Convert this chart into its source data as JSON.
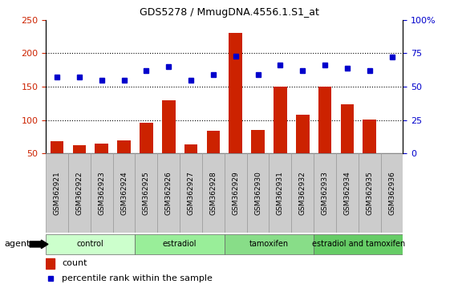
{
  "title": "GDS5278 / MmugDNA.4556.1.S1_at",
  "samples": [
    "GSM362921",
    "GSM362922",
    "GSM362923",
    "GSM362924",
    "GSM362925",
    "GSM362926",
    "GSM362927",
    "GSM362928",
    "GSM362929",
    "GSM362930",
    "GSM362931",
    "GSM362932",
    "GSM362933",
    "GSM362934",
    "GSM362935",
    "GSM362936"
  ],
  "count_values": [
    68,
    62,
    65,
    70,
    96,
    130,
    63,
    84,
    230,
    85,
    150,
    108,
    150,
    124,
    101,
    50
  ],
  "percentile_values": [
    57,
    57,
    55,
    55,
    62,
    65,
    55,
    59,
    73,
    59,
    66,
    62,
    66,
    64,
    62,
    72
  ],
  "bar_color": "#cc2200",
  "dot_color": "#0000cc",
  "groups": [
    {
      "label": "control",
      "start": 0,
      "end": 4,
      "color": "#ccffcc"
    },
    {
      "label": "estradiol",
      "start": 4,
      "end": 8,
      "color": "#99ee99"
    },
    {
      "label": "tamoxifen",
      "start": 8,
      "end": 12,
      "color": "#88dd88"
    },
    {
      "label": "estradiol and tamoxifen",
      "start": 12,
      "end": 16,
      "color": "#66cc66"
    }
  ],
  "group_row_label": "agent",
  "ylim_left": [
    50,
    250
  ],
  "ylim_right": [
    0,
    100
  ],
  "yticks_left": [
    50,
    100,
    150,
    200,
    250
  ],
  "yticks_right": [
    0,
    25,
    50,
    75,
    100
  ],
  "legend_count_label": "count",
  "legend_pct_label": "percentile rank within the sample",
  "bar_color_legend": "#cc2200",
  "dot_color_legend": "#0000cc",
  "tick_label_color_left": "#cc2200",
  "tick_label_color_right": "#0000cc",
  "xtick_bg_color": "#cccccc",
  "bar_bottom": 50
}
